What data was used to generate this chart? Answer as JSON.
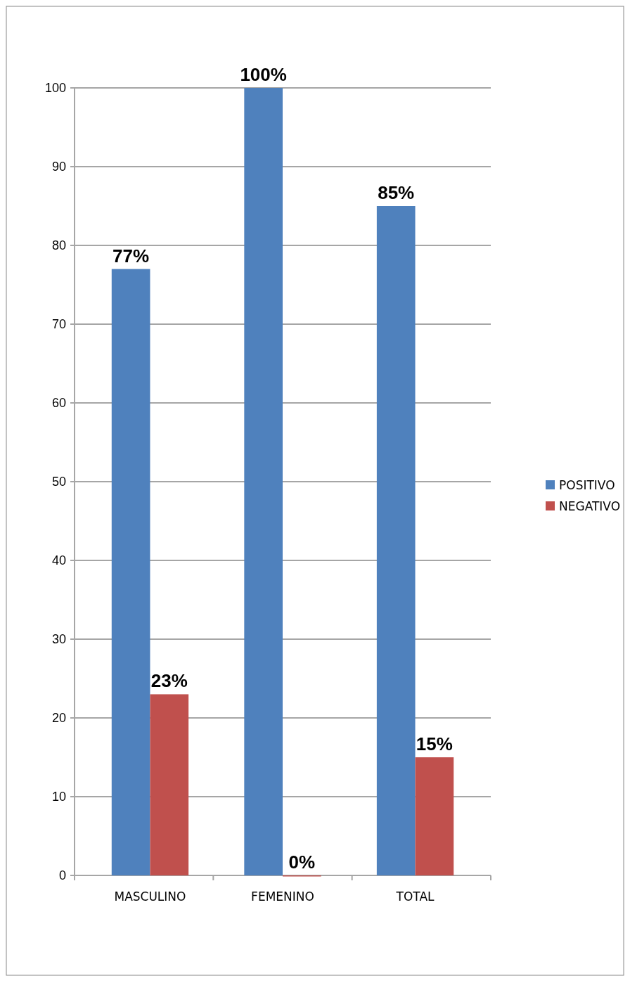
{
  "chart_data": {
    "type": "bar",
    "categories": [
      "MASCULINO",
      "FEMENINO",
      "TOTAL"
    ],
    "series": [
      {
        "name": "POSITIVO",
        "color": "#4f81bd",
        "values": [
          77,
          100,
          85
        ],
        "value_labels": [
          "77%",
          "100%",
          "85%"
        ]
      },
      {
        "name": "NEGATIVO",
        "color": "#c0504d",
        "values": [
          23,
          0,
          15
        ],
        "value_labels": [
          "23%",
          "0%",
          "15%"
        ]
      }
    ],
    "ylim": [
      0,
      100
    ],
    "yticks": [
      0,
      10,
      20,
      30,
      40,
      50,
      60,
      70,
      80,
      90,
      100
    ],
    "grid": "y",
    "legend": "right"
  }
}
